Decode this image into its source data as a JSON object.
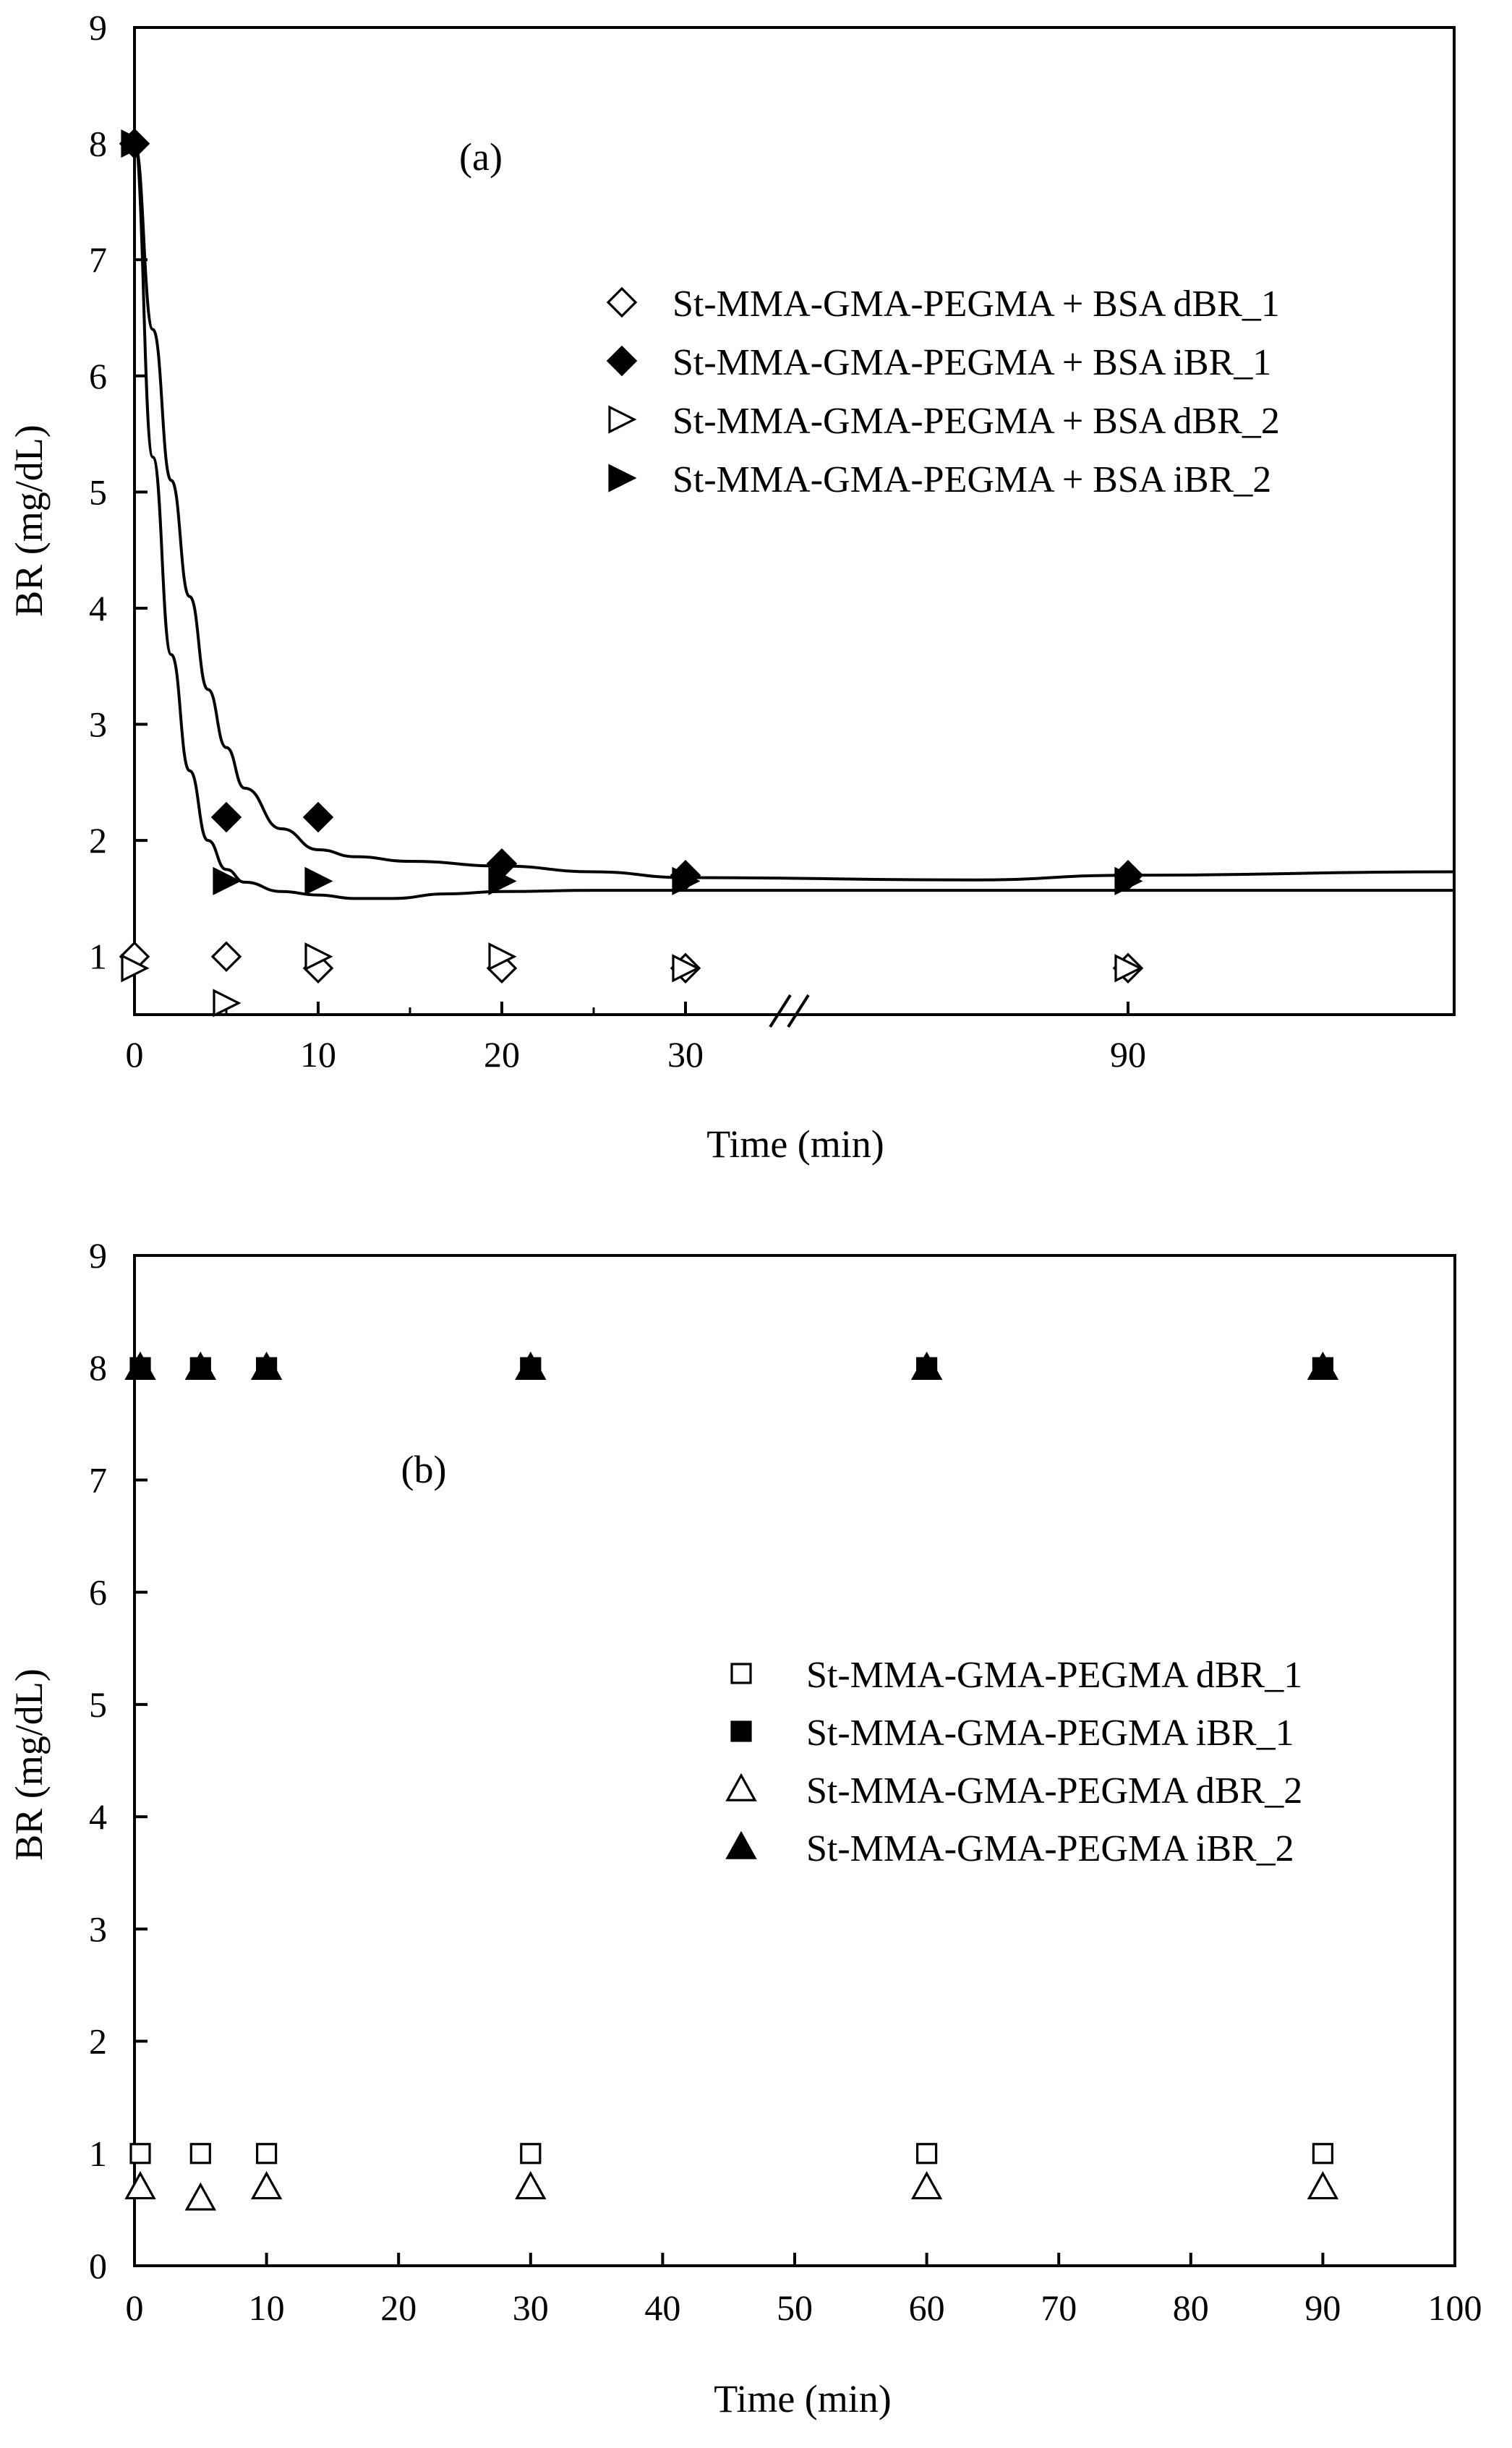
{
  "chart_data": [
    {
      "panel": "(a)",
      "type": "scatter",
      "xlabel": "Time (min)",
      "ylabel": "BR (mg/dL)",
      "ylim": [
        0.5,
        9
      ],
      "x_ticks": [
        0,
        10,
        20,
        30,
        90
      ],
      "y_ticks": [
        1,
        2,
        3,
        4,
        5,
        6,
        7,
        8,
        9
      ],
      "x_axis_break": "between 30 and 90",
      "legend_position": "top-right",
      "series": [
        {
          "name": "St-MMA-GMA-PEGMA + BSA dBR_1",
          "marker": "diamond-open",
          "x": [
            0,
            5,
            10,
            20,
            30,
            90
          ],
          "y": [
            1.0,
            1.0,
            0.9,
            0.9,
            0.9,
            0.9
          ]
        },
        {
          "name": "St-MMA-GMA-PEGMA + BSA iBR_1",
          "marker": "diamond-filled",
          "x": [
            0,
            5,
            10,
            20,
            30,
            90
          ],
          "y": [
            8.0,
            2.2,
            2.2,
            1.8,
            1.7,
            1.7
          ]
        },
        {
          "name": "St-MMA-GMA-PEGMA + BSA dBR_2",
          "marker": "triangle-right-open",
          "x": [
            0,
            5,
            10,
            20,
            30,
            90
          ],
          "y": [
            0.9,
            0.6,
            1.0,
            1.0,
            0.9,
            0.9
          ]
        },
        {
          "name": "St-MMA-GMA-PEGMA + BSA iBR_2",
          "marker": "triangle-right-filled",
          "x": [
            0,
            5,
            10,
            20,
            30,
            90
          ],
          "y": [
            8.0,
            1.65,
            1.65,
            1.65,
            1.65,
            1.65
          ]
        }
      ],
      "fit_curves": [
        {
          "name": "iBR_1 fit",
          "x": [
            0,
            1,
            2,
            3,
            4,
            5,
            6,
            8,
            10,
            12,
            15,
            20,
            25,
            30,
            60,
            90,
            110
          ],
          "y": [
            8.0,
            6.4,
            5.1,
            4.1,
            3.3,
            2.8,
            2.45,
            2.1,
            1.92,
            1.86,
            1.82,
            1.78,
            1.73,
            1.68,
            1.66,
            1.7,
            1.73
          ]
        },
        {
          "name": "iBR_2 fit",
          "x": [
            0,
            1,
            2,
            3,
            4,
            5,
            6,
            8,
            10,
            12,
            14,
            17,
            20,
            25,
            30,
            60,
            90,
            110
          ],
          "y": [
            8.0,
            5.3,
            3.6,
            2.6,
            2.0,
            1.75,
            1.64,
            1.56,
            1.53,
            1.5,
            1.5,
            1.54,
            1.56,
            1.57,
            1.57,
            1.57,
            1.57,
            1.57
          ]
        }
      ]
    },
    {
      "panel": "(b)",
      "type": "scatter",
      "xlabel": "Time (min)",
      "ylabel": "BR (mg/dL)",
      "xlim": [
        0,
        100
      ],
      "ylim": [
        0,
        9
      ],
      "x_ticks": [
        0,
        10,
        20,
        30,
        40,
        50,
        60,
        70,
        80,
        90,
        100
      ],
      "y_ticks": [
        0,
        1,
        2,
        3,
        4,
        5,
        6,
        7,
        8,
        9
      ],
      "legend_position": "center-right",
      "series": [
        {
          "name": "St-MMA-GMA-PEGMA dBR_1",
          "marker": "square-open",
          "x": [
            0,
            5,
            10,
            30,
            60,
            90
          ],
          "y": [
            1.0,
            1.0,
            1.0,
            1.0,
            1.0,
            1.0
          ]
        },
        {
          "name": "St-MMA-GMA-PEGMA iBR_1",
          "marker": "square-filled",
          "x": [
            0,
            5,
            10,
            30,
            60,
            90
          ],
          "y": [
            8.0,
            8.0,
            8.0,
            8.0,
            8.0,
            8.0
          ]
        },
        {
          "name": "St-MMA-GMA-PEGMA dBR_2",
          "marker": "triangle-up-open",
          "x": [
            0,
            5,
            10,
            30,
            60,
            90
          ],
          "y": [
            0.7,
            0.6,
            0.7,
            0.7,
            0.7,
            0.7
          ]
        },
        {
          "name": "St-MMA-GMA-PEGMA iBR_2",
          "marker": "triangle-up-filled",
          "x": [
            0,
            5,
            10,
            30,
            60,
            90
          ],
          "y": [
            8.0,
            8.0,
            8.0,
            8.0,
            8.0,
            8.0
          ]
        }
      ]
    }
  ]
}
